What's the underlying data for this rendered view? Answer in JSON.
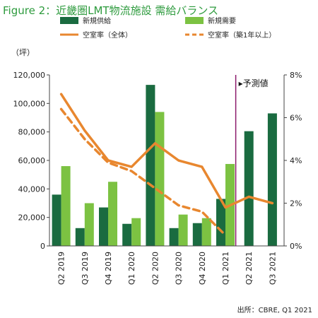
{
  "title": "Figure 2：近畿圏LMT物流施設 需給バランス",
  "source": "出所：CBRE, Q1 2021",
  "chart_data": {
    "type": "bar",
    "categories": [
      "Q2 2019",
      "Q3 2019",
      "Q4 2019",
      "Q1 2020",
      "Q2 2020",
      "Q3 2020",
      "Q4 2020",
      "Q1 2021",
      "Q2 2021",
      "Q3 2021"
    ],
    "left_unit": "（坪）",
    "ylim_left": [
      0,
      120000
    ],
    "yticks_left": [
      "0",
      "20,000",
      "40,000",
      "60,000",
      "80,000",
      "100,000",
      "120,000"
    ],
    "ylim_right": [
      0,
      8
    ],
    "yticks_right": [
      "0%",
      "2%",
      "4%",
      "6%",
      "8%"
    ],
    "forecast_label": "▸予測値",
    "legend": [
      "新規供給",
      "新規需要",
      "空室率（全体）",
      "空室率（築1年以上）"
    ],
    "series": [
      {
        "name": "新規供給",
        "type": "bar",
        "axis": "left",
        "color": "#1a6b40",
        "values": [
          36000,
          12500,
          27000,
          15500,
          113000,
          12500,
          16000,
          33000,
          80500,
          93000
        ]
      },
      {
        "name": "新規需要",
        "type": "bar",
        "axis": "left",
        "color": "#7cc242",
        "values": [
          56000,
          30000,
          45000,
          19500,
          94000,
          22000,
          19500,
          57500,
          null,
          null
        ]
      },
      {
        "name": "空室率（全体）",
        "type": "line",
        "axis": "right",
        "color": "#e8872f",
        "dashed": false,
        "values": [
          7.1,
          5.4,
          4.0,
          3.7,
          4.8,
          4.0,
          3.7,
          1.8,
          2.3,
          2.0
        ]
      },
      {
        "name": "空室率（築1年以上）",
        "type": "line",
        "axis": "right",
        "color": "#e8872f",
        "dashed": true,
        "values": [
          6.4,
          5.0,
          3.9,
          3.5,
          2.7,
          1.9,
          1.6,
          0.5,
          null,
          null
        ]
      }
    ]
  }
}
